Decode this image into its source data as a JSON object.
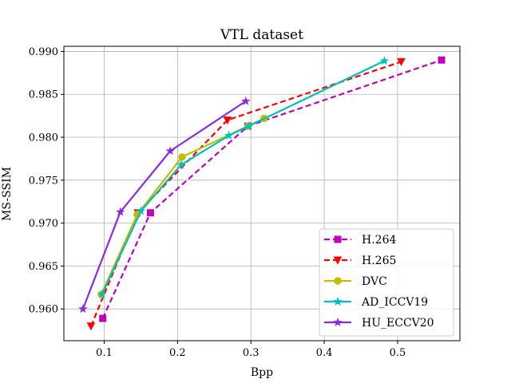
{
  "chart_data": {
    "type": "line",
    "title": "VTL dataset",
    "xlabel": "Bpp",
    "ylabel": "MS-SSIM",
    "xlim": [
      0.045,
      0.585
    ],
    "ylim": [
      0.9563,
      0.9906
    ],
    "xticks": [
      0.1,
      0.2,
      0.3,
      0.4,
      0.5
    ],
    "xtick_labels": [
      "0.1",
      "0.2",
      "0.3",
      "0.4",
      "0.5"
    ],
    "yticks": [
      0.96,
      0.965,
      0.97,
      0.975,
      0.98,
      0.985,
      0.99
    ],
    "ytick_labels": [
      "0.960",
      "0.965",
      "0.970",
      "0.975",
      "0.980",
      "0.985",
      "0.990"
    ],
    "grid": true,
    "legend_position": "lower-right",
    "series": [
      {
        "name": "H.264",
        "color": "#bf00bf",
        "dash": "dashed",
        "marker": "square",
        "x": [
          0.098,
          0.163,
          0.296,
          0.56
        ],
        "y": [
          0.9589,
          0.9712,
          0.9813,
          0.989
        ]
      },
      {
        "name": "H.265",
        "color": "#ff0000",
        "dash": "dashed",
        "marker": "triangle-down",
        "x": [
          0.082,
          0.146,
          0.268,
          0.505
        ],
        "y": [
          0.958,
          0.9712,
          0.982,
          0.9888
        ]
      },
      {
        "name": "DVC",
        "color": "#bfbf00",
        "dash": "solid",
        "marker": "circle",
        "x": [
          0.096,
          0.145,
          0.206,
          0.296,
          0.318
        ],
        "y": [
          0.9617,
          0.971,
          0.9777,
          0.9813,
          0.9822
        ]
      },
      {
        "name": "AD_ICCV19",
        "color": "#00bfbf",
        "dash": "solid",
        "marker": "star",
        "x": [
          0.097,
          0.15,
          0.205,
          0.27,
          0.297,
          0.482
        ],
        "y": [
          0.9617,
          0.9714,
          0.9768,
          0.9802,
          0.9813,
          0.9889
        ]
      },
      {
        "name": "HU_ECCV20",
        "color": "#8a2be2",
        "dash": "solid",
        "marker": "star",
        "x": [
          0.071,
          0.122,
          0.19,
          0.293
        ],
        "y": [
          0.96,
          0.9713,
          0.9784,
          0.9842
        ]
      }
    ]
  }
}
